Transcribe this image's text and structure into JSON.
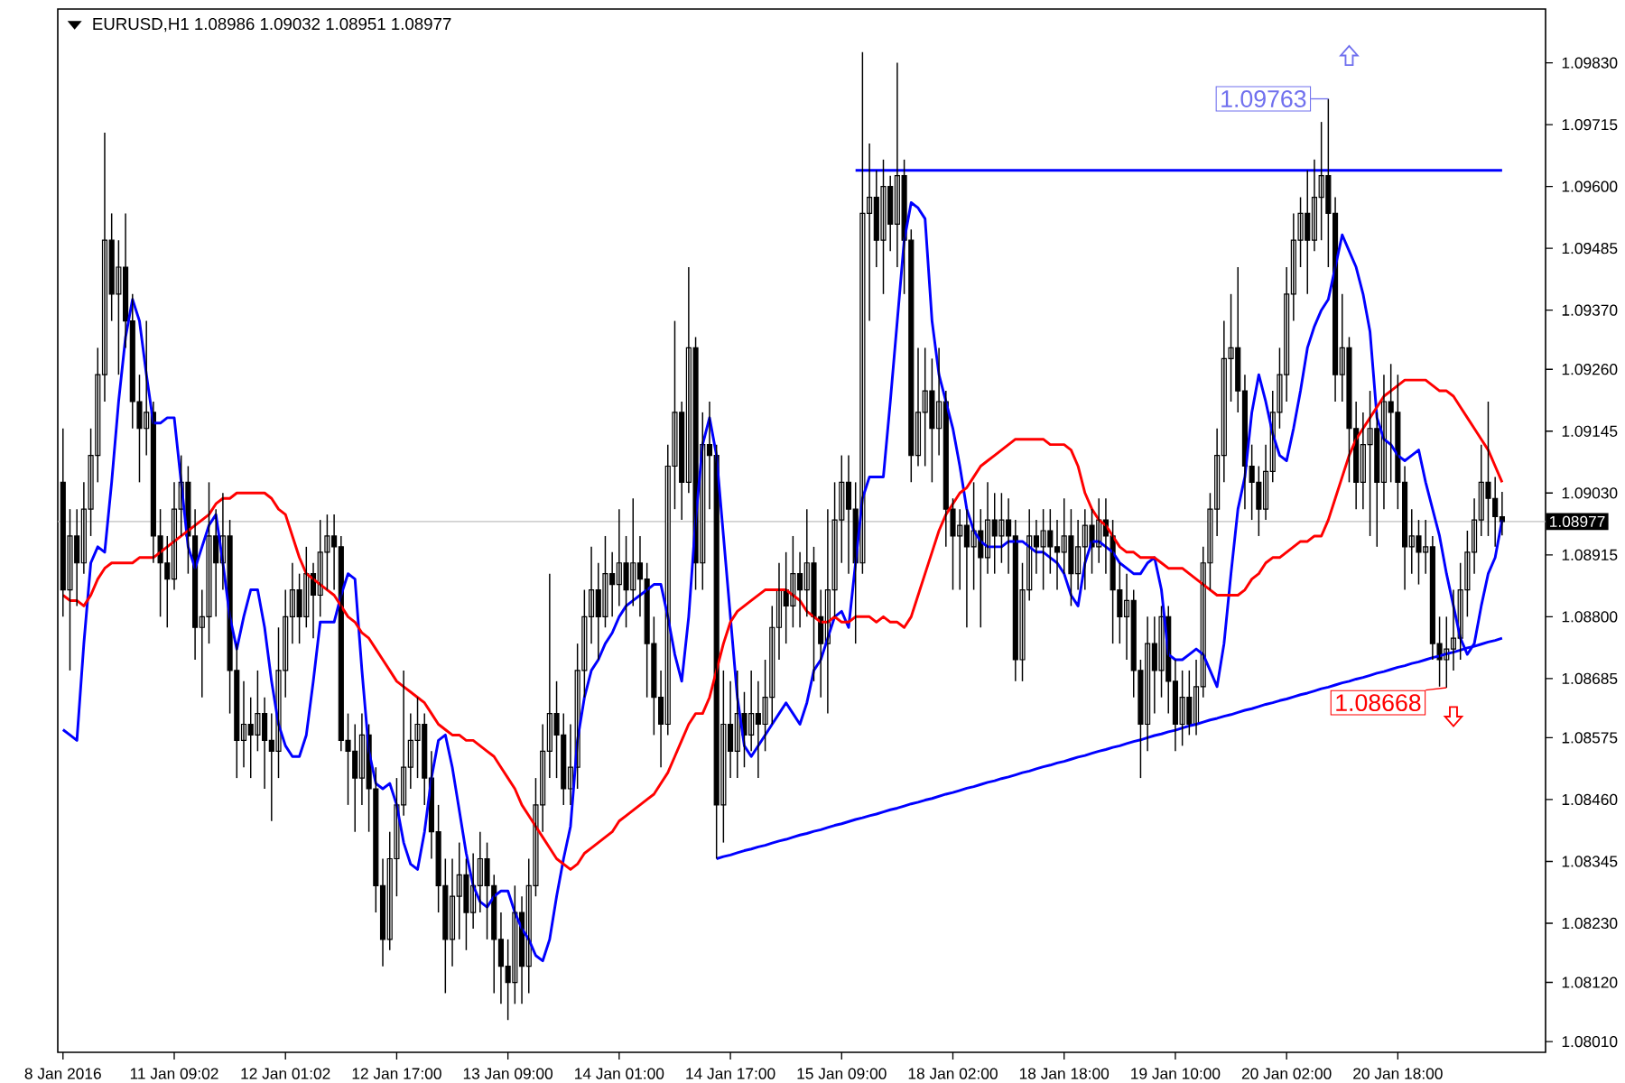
{
  "chart_data": {
    "type": "candlestick",
    "title": "EURUSD,H1 1.08986 1.09032 1.08951 1.08977",
    "categories": [
      "8 Jan 2016",
      null,
      null,
      null,
      null,
      null,
      null,
      null,
      null,
      null,
      null,
      null,
      null,
      null,
      null,
      null,
      "11 Jan 09:02",
      null,
      null,
      null,
      null,
      null,
      null,
      null,
      null,
      null,
      null,
      null,
      null,
      null,
      null,
      null,
      "12 Jan 01:02",
      null,
      null,
      null,
      null,
      null,
      null,
      null,
      null,
      null,
      null,
      null,
      null,
      null,
      null,
      null,
      "12 Jan 17:00",
      null,
      null,
      null,
      null,
      null,
      null,
      null,
      null,
      null,
      null,
      null,
      null,
      null,
      null,
      null,
      "13 Jan 09:00",
      null,
      null,
      null,
      null,
      null,
      null,
      null,
      null,
      null,
      null,
      null,
      null,
      null,
      null,
      null,
      "14 Jan 01:00",
      null,
      null,
      null,
      null,
      null,
      null,
      null,
      null,
      null,
      null,
      null,
      null,
      null,
      null,
      null,
      "14 Jan 17:00",
      null,
      null,
      null,
      null,
      null,
      null,
      null,
      null,
      null,
      null,
      null,
      null,
      null,
      null,
      null,
      "15 Jan 09:00",
      null,
      null,
      null,
      null,
      null,
      null,
      null,
      null,
      null,
      null,
      null,
      null,
      null,
      null,
      null,
      "18 Jan 02:00",
      null,
      null,
      null,
      null,
      null,
      null,
      null,
      null,
      null,
      null,
      null,
      null,
      null,
      null,
      null,
      "18 Jan 18:00",
      null,
      null,
      null,
      null,
      null,
      null,
      null,
      null,
      null,
      null,
      null,
      null,
      null,
      null,
      null,
      "19 Jan 10:00",
      null,
      null,
      null,
      null,
      null,
      null,
      null,
      null,
      null,
      null,
      null,
      null,
      null,
      null,
      null,
      "20 Jan 02:00",
      null,
      null,
      null,
      null,
      null,
      null,
      null,
      null,
      null,
      null,
      null,
      null,
      null,
      null,
      null,
      "20 Jan 18:00",
      null,
      null,
      null,
      null,
      null,
      null,
      null,
      null,
      null,
      null,
      null,
      null,
      null,
      null,
      null
    ],
    "ohlc": [
      [
        1.0905,
        1.0915,
        1.088,
        1.0885
      ],
      [
        1.0885,
        1.09,
        1.087,
        1.0895
      ],
      [
        1.0895,
        1.09,
        1.0882,
        1.089
      ],
      [
        1.089,
        1.0905,
        1.0888,
        1.09
      ],
      [
        1.09,
        1.0915,
        1.0895,
        1.091
      ],
      [
        1.091,
        1.093,
        1.0905,
        1.0925
      ],
      [
        1.0925,
        1.097,
        1.092,
        1.095
      ],
      [
        1.095,
        1.0955,
        1.0935,
        1.094
      ],
      [
        1.094,
        1.095,
        1.0925,
        1.0945
      ],
      [
        1.0945,
        1.0955,
        1.093,
        1.0935
      ],
      [
        1.0935,
        1.094,
        1.0915,
        1.092
      ],
      [
        1.092,
        1.0925,
        1.0905,
        1.0915
      ],
      [
        1.0915,
        1.0935,
        1.091,
        1.0918
      ],
      [
        1.0918,
        1.092,
        1.089,
        1.0895
      ],
      [
        1.0895,
        1.09,
        1.088,
        1.089
      ],
      [
        1.089,
        1.0895,
        1.0878,
        1.0887
      ],
      [
        1.0887,
        1.0905,
        1.0885,
        1.09
      ],
      [
        1.09,
        1.091,
        1.0895,
        1.0905
      ],
      [
        1.0905,
        1.0908,
        1.0888,
        1.0895
      ],
      [
        1.0895,
        1.09,
        1.0872,
        1.0878
      ],
      [
        1.0878,
        1.0885,
        1.0865,
        1.088
      ],
      [
        1.088,
        1.0905,
        1.0875,
        1.0895
      ],
      [
        1.0895,
        1.09,
        1.088,
        1.089
      ],
      [
        1.089,
        1.0903,
        1.0885,
        1.0895
      ],
      [
        1.0895,
        1.0898,
        1.0862,
        1.087
      ],
      [
        1.087,
        1.0875,
        1.085,
        1.0857
      ],
      [
        1.0857,
        1.0868,
        1.0852,
        1.086
      ],
      [
        1.086,
        1.0865,
        1.085,
        1.0858
      ],
      [
        1.0858,
        1.087,
        1.0855,
        1.0862
      ],
      [
        1.0862,
        1.0865,
        1.0848,
        1.0857
      ],
      [
        1.0857,
        1.0862,
        1.0842,
        1.0855
      ],
      [
        1.0855,
        1.0878,
        1.085,
        1.087
      ],
      [
        1.087,
        1.0885,
        1.0865,
        1.088
      ],
      [
        1.088,
        1.089,
        1.0875,
        1.0885
      ],
      [
        1.0885,
        1.0888,
        1.0875,
        1.088
      ],
      [
        1.088,
        1.0893,
        1.0878,
        1.0888
      ],
      [
        1.0888,
        1.089,
        1.0876,
        1.0884
      ],
      [
        1.0884,
        1.0898,
        1.088,
        1.0892
      ],
      [
        1.0892,
        1.0899,
        1.0885,
        1.0895
      ],
      [
        1.0895,
        1.0899,
        1.0885,
        1.0893
      ],
      [
        1.0893,
        1.0895,
        1.0855,
        1.0857
      ],
      [
        1.0857,
        1.0862,
        1.0845,
        1.0855
      ],
      [
        1.0855,
        1.086,
        1.084,
        1.085
      ],
      [
        1.085,
        1.0862,
        1.0845,
        1.0858
      ],
      [
        1.0858,
        1.086,
        1.084,
        1.0848
      ],
      [
        1.0848,
        1.0852,
        1.0825,
        1.083
      ],
      [
        1.083,
        1.0835,
        1.0815,
        1.082
      ],
      [
        1.082,
        1.084,
        1.0818,
        1.0835
      ],
      [
        1.0835,
        1.085,
        1.0828,
        1.0845
      ],
      [
        1.0845,
        1.087,
        1.0843,
        1.0852
      ],
      [
        1.0852,
        1.0862,
        1.0848,
        1.0857
      ],
      [
        1.0857,
        1.0865,
        1.085,
        1.086
      ],
      [
        1.086,
        1.0862,
        1.0845,
        1.085
      ],
      [
        1.085,
        1.0855,
        1.0835,
        1.084
      ],
      [
        1.084,
        1.0845,
        1.0825,
        1.083
      ],
      [
        1.083,
        1.0835,
        1.081,
        1.082
      ],
      [
        1.082,
        1.0835,
        1.0815,
        1.0828
      ],
      [
        1.0828,
        1.0838,
        1.082,
        1.0832
      ],
      [
        1.0832,
        1.0835,
        1.0818,
        1.0825
      ],
      [
        1.0825,
        1.0836,
        1.0822,
        1.083
      ],
      [
        1.083,
        1.084,
        1.0825,
        1.0835
      ],
      [
        1.0835,
        1.0838,
        1.082,
        1.083
      ],
      [
        1.083,
        1.0832,
        1.081,
        1.082
      ],
      [
        1.082,
        1.0825,
        1.0808,
        1.0815
      ],
      [
        1.0815,
        1.082,
        1.0805,
        1.0812
      ],
      [
        1.0812,
        1.083,
        1.0808,
        1.0825
      ],
      [
        1.0825,
        1.0828,
        1.0808,
        1.0815
      ],
      [
        1.0815,
        1.0835,
        1.081,
        1.083
      ],
      [
        1.083,
        1.085,
        1.0828,
        1.0845
      ],
      [
        1.0845,
        1.086,
        1.084,
        1.0855
      ],
      [
        1.0855,
        1.0888,
        1.085,
        1.0862
      ],
      [
        1.0862,
        1.0868,
        1.085,
        1.0858
      ],
      [
        1.0858,
        1.0862,
        1.0845,
        1.0848
      ],
      [
        1.0848,
        1.086,
        1.0845,
        1.0852
      ],
      [
        1.0852,
        1.0875,
        1.0848,
        1.087
      ],
      [
        1.087,
        1.0885,
        1.0865,
        1.088
      ],
      [
        1.088,
        1.0893,
        1.0875,
        1.0885
      ],
      [
        1.0885,
        1.089,
        1.0872,
        1.088
      ],
      [
        1.088,
        1.0895,
        1.0878,
        1.0888
      ],
      [
        1.0888,
        1.0892,
        1.088,
        1.0886
      ],
      [
        1.0886,
        1.09,
        1.0882,
        1.089
      ],
      [
        1.089,
        1.0895,
        1.0878,
        1.0885
      ],
      [
        1.0885,
        1.0902,
        1.0882,
        1.089
      ],
      [
        1.089,
        1.0895,
        1.088,
        1.0887
      ],
      [
        1.0887,
        1.089,
        1.0865,
        1.0875
      ],
      [
        1.0875,
        1.088,
        1.0858,
        1.0865
      ],
      [
        1.0865,
        1.087,
        1.0852,
        1.086
      ],
      [
        1.086,
        1.0912,
        1.0858,
        1.0908
      ],
      [
        1.0908,
        1.0935,
        1.09,
        1.0918
      ],
      [
        1.0918,
        1.092,
        1.0898,
        1.0905
      ],
      [
        1.0905,
        1.0945,
        1.0903,
        1.093
      ],
      [
        1.093,
        1.0932,
        1.0885,
        1.089
      ],
      [
        1.089,
        1.0918,
        1.0885,
        1.0912
      ],
      [
        1.0912,
        1.092,
        1.09,
        1.091
      ],
      [
        1.091,
        1.0912,
        1.0835,
        1.0845
      ],
      [
        1.0845,
        1.087,
        1.0838,
        1.086
      ],
      [
        1.086,
        1.0868,
        1.085,
        1.0855
      ],
      [
        1.0855,
        1.087,
        1.085,
        1.0862
      ],
      [
        1.0862,
        1.0866,
        1.0852,
        1.0858
      ],
      [
        1.0858,
        1.087,
        1.0855,
        1.0862
      ],
      [
        1.0862,
        1.0868,
        1.085,
        1.086
      ],
      [
        1.086,
        1.0872,
        1.0855,
        1.0865
      ],
      [
        1.0865,
        1.0882,
        1.086,
        1.0878
      ],
      [
        1.0878,
        1.089,
        1.0872,
        1.0885
      ],
      [
        1.0885,
        1.0892,
        1.0875,
        1.0882
      ],
      [
        1.0882,
        1.0895,
        1.0878,
        1.0888
      ],
      [
        1.0888,
        1.0892,
        1.0878,
        1.0885
      ],
      [
        1.0885,
        1.09,
        1.088,
        1.089
      ],
      [
        1.089,
        1.0893,
        1.0868,
        1.088
      ],
      [
        1.088,
        1.0885,
        1.0865,
        1.0875
      ],
      [
        1.0875,
        1.09,
        1.0862,
        1.0885
      ],
      [
        1.0885,
        1.0905,
        1.088,
        1.0898
      ],
      [
        1.0898,
        1.091,
        1.089,
        1.0905
      ],
      [
        1.0905,
        1.091,
        1.0888,
        1.09
      ],
      [
        1.09,
        1.0905,
        1.0875,
        1.089
      ],
      [
        1.089,
        1.0985,
        1.0888,
        1.0955
      ],
      [
        1.0955,
        1.0968,
        1.0935,
        1.0958
      ],
      [
        1.0958,
        1.0963,
        1.0945,
        1.095
      ],
      [
        1.095,
        1.0965,
        1.094,
        1.096
      ],
      [
        1.096,
        1.0962,
        1.0948,
        1.0953
      ],
      [
        1.0953,
        1.0983,
        1.0945,
        1.0962
      ],
      [
        1.0962,
        1.0965,
        1.094,
        1.095
      ],
      [
        1.095,
        1.0952,
        1.0905,
        1.091
      ],
      [
        1.091,
        1.093,
        1.0908,
        1.0918
      ],
      [
        1.0918,
        1.093,
        1.0908,
        1.0922
      ],
      [
        1.0922,
        1.0928,
        1.0905,
        1.0915
      ],
      [
        1.0915,
        1.093,
        1.091,
        1.092
      ],
      [
        1.092,
        1.0922,
        1.0893,
        1.09
      ],
      [
        1.09,
        1.0902,
        1.0885,
        1.0895
      ],
      [
        1.0895,
        1.09,
        1.0885,
        1.0897
      ],
      [
        1.0897,
        1.09,
        1.0878,
        1.0893
      ],
      [
        1.0893,
        1.0905,
        1.0885,
        1.0896
      ],
      [
        1.0896,
        1.09,
        1.0878,
        1.0891
      ],
      [
        1.0891,
        1.0905,
        1.0888,
        1.0898
      ],
      [
        1.0898,
        1.0903,
        1.0888,
        1.0895
      ],
      [
        1.0895,
        1.0903,
        1.089,
        1.0898
      ],
      [
        1.0898,
        1.0902,
        1.0888,
        1.0895
      ],
      [
        1.0895,
        1.0898,
        1.0868,
        1.0872
      ],
      [
        1.0872,
        1.089,
        1.0868,
        1.0885
      ],
      [
        1.0885,
        1.09,
        1.0883,
        1.0895
      ],
      [
        1.0895,
        1.0898,
        1.0888,
        1.0893
      ],
      [
        1.0893,
        1.09,
        1.0885,
        1.0896
      ],
      [
        1.0896,
        1.09,
        1.0888,
        1.0893
      ],
      [
        1.0893,
        1.0898,
        1.0885,
        1.0892
      ],
      [
        1.0892,
        1.0902,
        1.0888,
        1.0895
      ],
      [
        1.0895,
        1.09,
        1.0882,
        1.0888
      ],
      [
        1.0888,
        1.0898,
        1.0885,
        1.0893
      ],
      [
        1.0893,
        1.09,
        1.0885,
        1.0897
      ],
      [
        1.0897,
        1.09,
        1.0888,
        1.0893
      ],
      [
        1.0893,
        1.0902,
        1.089,
        1.0898
      ],
      [
        1.0898,
        1.0902,
        1.0888,
        1.0895
      ],
      [
        1.0895,
        1.0898,
        1.0875,
        1.0885
      ],
      [
        1.0885,
        1.089,
        1.0875,
        1.088
      ],
      [
        1.088,
        1.0888,
        1.0872,
        1.0883
      ],
      [
        1.0883,
        1.0885,
        1.0865,
        1.087
      ],
      [
        1.087,
        1.0872,
        1.085,
        1.086
      ],
      [
        1.086,
        1.088,
        1.0855,
        1.0875
      ],
      [
        1.0875,
        1.088,
        1.0862,
        1.087
      ],
      [
        1.087,
        1.0882,
        1.0865,
        1.088
      ],
      [
        1.088,
        1.0882,
        1.0862,
        1.0868
      ],
      [
        1.0868,
        1.0872,
        1.0855,
        1.086
      ],
      [
        1.086,
        1.087,
        1.0856,
        1.0865
      ],
      [
        1.0865,
        1.087,
        1.0858,
        1.086
      ],
      [
        1.086,
        1.0872,
        1.0858,
        1.0867
      ],
      [
        1.0867,
        1.0893,
        1.0865,
        1.089
      ],
      [
        1.089,
        1.0903,
        1.0885,
        1.09
      ],
      [
        1.09,
        1.0915,
        1.0895,
        1.091
      ],
      [
        1.091,
        1.0935,
        1.0905,
        1.0928
      ],
      [
        1.0928,
        1.094,
        1.092,
        1.093
      ],
      [
        1.093,
        1.0945,
        1.0918,
        1.0922
      ],
      [
        1.0922,
        1.0925,
        1.09,
        1.0908
      ],
      [
        1.0908,
        1.0912,
        1.0898,
        1.0905
      ],
      [
        1.0905,
        1.0908,
        1.0895,
        1.09
      ],
      [
        1.09,
        1.0912,
        1.0898,
        1.0907
      ],
      [
        1.0907,
        1.0922,
        1.0905,
        1.0918
      ],
      [
        1.0918,
        1.093,
        1.0915,
        1.0925
      ],
      [
        1.0925,
        1.0945,
        1.092,
        1.094
      ],
      [
        1.094,
        1.0955,
        1.0935,
        1.095
      ],
      [
        1.095,
        1.0958,
        1.0945,
        1.0955
      ],
      [
        1.0955,
        1.0963,
        1.094,
        1.095
      ],
      [
        1.095,
        1.0965,
        1.0948,
        1.0958
      ],
      [
        1.0958,
        1.0972,
        1.095,
        1.0962
      ],
      [
        1.0962,
        1.09763,
        1.0945,
        1.0955
      ],
      [
        1.0955,
        1.0958,
        1.092,
        1.0925
      ],
      [
        1.0925,
        1.094,
        1.092,
        1.093
      ],
      [
        1.093,
        1.0932,
        1.0905,
        1.0915
      ],
      [
        1.0915,
        1.092,
        1.09,
        1.0905
      ],
      [
        1.0905,
        1.0918,
        1.09,
        1.0912
      ],
      [
        1.0912,
        1.0922,
        1.0895,
        1.0915
      ],
      [
        1.0915,
        1.0918,
        1.0893,
        1.0905
      ],
      [
        1.0905,
        1.0925,
        1.09,
        1.092
      ],
      [
        1.092,
        1.0927,
        1.0905,
        1.0918
      ],
      [
        1.0918,
        1.0925,
        1.09,
        1.0905
      ],
      [
        1.0905,
        1.0908,
        1.0885,
        1.0893
      ],
      [
        1.0893,
        1.09,
        1.0888,
        1.0895
      ],
      [
        1.0895,
        1.0898,
        1.0886,
        1.0892
      ],
      [
        1.0892,
        1.0898,
        1.0888,
        1.0893
      ],
      [
        1.0893,
        1.0895,
        1.0872,
        1.0875
      ],
      [
        1.0875,
        1.088,
        1.0867,
        1.0872
      ],
      [
        1.0872,
        1.088,
        1.08668,
        1.0874
      ],
      [
        1.0874,
        1.0885,
        1.087,
        1.0876
      ],
      [
        1.0876,
        1.089,
        1.0872,
        1.0885
      ],
      [
        1.0885,
        1.0896,
        1.088,
        1.0892
      ],
      [
        1.0892,
        1.0902,
        1.0888,
        1.0898
      ],
      [
        1.0898,
        1.0912,
        1.0895,
        1.0905
      ],
      [
        1.0905,
        1.092,
        1.0895,
        1.0902
      ],
      [
        1.0902,
        1.0906,
        1.0893,
        1.08986
      ],
      [
        1.08986,
        1.09032,
        1.08951,
        1.08977
      ]
    ],
    "series": [
      {
        "type": "line",
        "color": "#0000ff",
        "values": [
          1.0859,
          1.0858,
          1.0857,
          1.0875,
          1.089,
          1.0893,
          1.0892,
          1.0905,
          1.092,
          1.0932,
          1.0939,
          1.0935,
          1.0925,
          1.0916,
          1.0916,
          1.0917,
          1.0917,
          1.0905,
          1.0893,
          1.0889,
          1.0893,
          1.0897,
          1.0899,
          1.089,
          1.088,
          1.0874,
          1.088,
          1.0885,
          1.0885,
          1.0878,
          1.0868,
          1.086,
          1.0856,
          1.0854,
          1.0854,
          1.0858,
          1.0868,
          1.0879,
          1.0879,
          1.0879,
          1.0884,
          1.0888,
          1.0887,
          1.087,
          1.0855,
          1.0849,
          1.0848,
          1.0849,
          1.0845,
          1.0838,
          1.0834,
          1.0833,
          1.084,
          1.085,
          1.0857,
          1.0858,
          1.0852,
          1.0844,
          1.0836,
          1.083,
          1.0827,
          1.0826,
          1.0828,
          1.0829,
          1.0829,
          1.0825,
          1.0822,
          1.082,
          1.0817,
          1.0816,
          1.082,
          1.0828,
          1.0835,
          1.0841,
          1.0857,
          1.0865,
          1.087,
          1.0872,
          1.0875,
          1.0877,
          1.088,
          1.0882,
          1.0883,
          1.0884,
          1.0885,
          1.0886,
          1.0886,
          1.088,
          1.0873,
          1.0868,
          1.088,
          1.0898,
          1.0912,
          1.0917,
          1.091,
          1.0895,
          1.088,
          1.0865,
          1.0856,
          1.0854,
          1.0856,
          1.0858,
          1.086,
          1.0862,
          1.0864,
          1.0862,
          1.086,
          1.0864,
          1.087,
          1.0872,
          1.0876,
          1.088,
          1.0881,
          1.0878,
          1.089,
          1.0902,
          1.0906,
          1.0906,
          1.0906,
          1.092,
          1.0935,
          1.095,
          1.0957,
          1.0956,
          1.0954,
          1.0935,
          1.0925,
          1.092,
          1.0915,
          1.0908,
          1.09,
          1.0896,
          1.0894,
          1.0893,
          1.0893,
          1.0893,
          1.0894,
          1.0894,
          1.0894,
          1.0893,
          1.0892,
          1.0892,
          1.0891,
          1.089,
          1.0888,
          1.0884,
          1.0882,
          1.089,
          1.0894,
          1.0894,
          1.0893,
          1.0892,
          1.089,
          1.0889,
          1.0888,
          1.0888,
          1.089,
          1.0891,
          1.0885,
          1.0873,
          1.0872,
          1.0872,
          1.0873,
          1.0874,
          1.0873,
          1.087,
          1.0867,
          1.0875,
          1.0888,
          1.09,
          1.0906,
          1.0918,
          1.0925,
          1.092,
          1.0914,
          1.091,
          1.0909,
          1.0915,
          1.0922,
          1.093,
          1.0934,
          1.0937,
          1.0939,
          1.0945,
          1.0951,
          1.0948,
          1.0945,
          1.094,
          1.0933,
          1.0917,
          1.0913,
          1.0912,
          1.091,
          1.0909,
          1.091,
          1.0911,
          1.0905,
          1.09,
          1.0895,
          1.0888,
          1.0882,
          1.0876,
          1.0873,
          1.0875,
          1.0882,
          1.0888,
          1.0891,
          1.0898
        ]
      },
      {
        "type": "line",
        "color": "#ff0000",
        "values": [
          1.0884,
          1.0883,
          1.0883,
          1.0882,
          1.0884,
          1.0887,
          1.0889,
          1.089,
          1.089,
          1.089,
          1.089,
          1.0891,
          1.0891,
          1.0891,
          1.0892,
          1.0893,
          1.0894,
          1.0895,
          1.0896,
          1.0897,
          1.0898,
          1.0899,
          1.0901,
          1.0902,
          1.0902,
          1.0903,
          1.0903,
          1.0903,
          1.0903,
          1.0903,
          1.0902,
          1.09,
          1.0899,
          1.0895,
          1.0891,
          1.0888,
          1.0887,
          1.0886,
          1.0885,
          1.0884,
          1.0882,
          1.088,
          1.0879,
          1.0877,
          1.0876,
          1.0874,
          1.0872,
          1.087,
          1.0868,
          1.0867,
          1.0866,
          1.0865,
          1.0864,
          1.0862,
          1.086,
          1.0859,
          1.0858,
          1.0858,
          1.0857,
          1.0857,
          1.0856,
          1.0855,
          1.0854,
          1.0852,
          1.085,
          1.0848,
          1.0845,
          1.0843,
          1.0841,
          1.0839,
          1.0837,
          1.0835,
          1.0834,
          1.0833,
          1.0834,
          1.0836,
          1.0837,
          1.0838,
          1.0839,
          1.084,
          1.0842,
          1.0843,
          1.0844,
          1.0845,
          1.0846,
          1.0847,
          1.0849,
          1.0851,
          1.0854,
          1.0857,
          1.086,
          1.0862,
          1.0862,
          1.0865,
          1.087,
          1.0875,
          1.0879,
          1.0881,
          1.0882,
          1.0883,
          1.0884,
          1.0885,
          1.0885,
          1.0885,
          1.0885,
          1.0884,
          1.0883,
          1.0881,
          1.088,
          1.0879,
          1.0879,
          1.088,
          1.0879,
          1.0879,
          1.088,
          1.088,
          1.088,
          1.0879,
          1.088,
          1.0879,
          1.0879,
          1.0878,
          1.088,
          1.0884,
          1.0888,
          1.0892,
          1.0896,
          1.0899,
          1.0901,
          1.0903,
          1.0904,
          1.0906,
          1.0908,
          1.0909,
          1.091,
          1.0911,
          1.0912,
          1.0913,
          1.0913,
          1.0913,
          1.0913,
          1.0913,
          1.0912,
          1.0912,
          1.0912,
          1.0911,
          1.0908,
          1.0903,
          1.09,
          1.0898,
          1.0897,
          1.0895,
          1.0893,
          1.0892,
          1.0892,
          1.0891,
          1.0891,
          1.0891,
          1.089,
          1.0889,
          1.0889,
          1.0889,
          1.0888,
          1.0887,
          1.0886,
          1.0885,
          1.0884,
          1.0884,
          1.0884,
          1.0884,
          1.0885,
          1.0887,
          1.0888,
          1.089,
          1.0891,
          1.0891,
          1.0892,
          1.0893,
          1.0894,
          1.0894,
          1.0895,
          1.0895,
          1.0898,
          1.0902,
          1.0906,
          1.091,
          1.0913,
          1.0915,
          1.0917,
          1.0919,
          1.0921,
          1.0922,
          1.0923,
          1.0924,
          1.0924,
          1.0924,
          1.0924,
          1.0923,
          1.0922,
          1.0922,
          1.0921,
          1.0919,
          1.0917,
          1.0915,
          1.0913,
          1.0911,
          1.0908,
          1.0905
        ]
      },
      {
        "type": "line",
        "color": "#0000ff",
        "values": [
          null,
          null,
          null,
          null,
          null,
          null,
          null,
          null,
          null,
          null,
          null,
          null,
          null,
          null,
          null,
          null,
          null,
          null,
          null,
          null,
          null,
          null,
          null,
          null,
          null,
          null,
          null,
          null,
          null,
          null,
          null,
          null,
          null,
          null,
          null,
          null,
          null,
          null,
          null,
          null,
          null,
          null,
          null,
          null,
          null,
          null,
          null,
          null,
          null,
          null,
          null,
          null,
          null,
          null,
          null,
          null,
          null,
          null,
          null,
          null,
          null,
          null,
          null,
          null,
          null,
          null,
          null,
          null,
          null,
          null,
          null,
          null,
          null,
          null,
          null,
          null,
          null,
          null,
          null,
          null,
          null,
          null,
          null,
          null,
          null,
          null,
          null,
          null,
          null,
          null,
          null,
          null,
          null,
          null,
          null,
          null,
          null,
          null,
          null,
          null,
          null,
          null,
          null,
          null,
          null,
          null,
          null,
          null,
          null,
          null,
          null,
          null,
          null,
          null,
          1.0963,
          1.0963,
          1.0963,
          1.0963,
          1.0963,
          1.0963,
          1.0963,
          1.0963,
          1.0963,
          1.0963,
          1.0963,
          1.0963,
          1.0963,
          1.0963,
          1.0963,
          1.0963,
          1.0963,
          1.0963,
          1.0963,
          1.0963,
          1.0963,
          1.0963,
          1.0963,
          1.0963,
          1.0963,
          1.0963,
          1.0963,
          1.0963,
          1.0963,
          1.0963,
          1.0963,
          1.0963,
          1.0963,
          1.0963,
          1.0963,
          1.0963,
          1.0963,
          1.0963,
          1.0963,
          1.0963,
          1.0963,
          1.0963,
          1.0963,
          1.0963,
          1.0963,
          1.0963,
          1.0963,
          1.0963,
          1.0963,
          1.0963,
          1.0963,
          1.0963,
          1.0963,
          1.0963,
          1.0963,
          1.0963,
          1.0963,
          1.0963,
          1.0963,
          1.0963,
          1.0963,
          1.0963,
          1.0963,
          1.0963,
          1.0963,
          1.0963,
          1.0963,
          1.0963,
          1.0963,
          1.0963,
          1.0963,
          1.0963,
          1.0963,
          1.0963,
          1.0963,
          1.0963,
          1.0963,
          1.0963,
          1.0963,
          1.0963,
          1.0963,
          1.0963,
          1.0963,
          1.0963,
          1.0963,
          1.0963,
          1.0963,
          1.0963,
          1.0963,
          1.0963,
          1.0963,
          1.0963,
          1.0963,
          1.0963
        ]
      },
      {
        "type": "line",
        "color": "#0000ff",
        "values": [
          null,
          null,
          null,
          null,
          null,
          null,
          null,
          null,
          null,
          null,
          null,
          null,
          null,
          null,
          null,
          null,
          null,
          null,
          null,
          null,
          null,
          null,
          null,
          null,
          null,
          null,
          null,
          null,
          null,
          null,
          null,
          null,
          null,
          null,
          null,
          null,
          null,
          null,
          null,
          null,
          null,
          null,
          null,
          null,
          null,
          null,
          null,
          null,
          null,
          null,
          null,
          null,
          null,
          null,
          null,
          null,
          null,
          null,
          null,
          null,
          null,
          null,
          null,
          null,
          null,
          null,
          null,
          null,
          null,
          null,
          null,
          null,
          null,
          null,
          null,
          null,
          null,
          null,
          null,
          null,
          null,
          null,
          null,
          null,
          null,
          null,
          null,
          null,
          null,
          null,
          null,
          null,
          null,
          null,
          1.0835,
          1.08354,
          1.08357,
          1.08361,
          1.08365,
          1.08368,
          1.08372,
          1.08375,
          1.08379,
          1.08383,
          1.08386,
          1.0839,
          1.08394,
          1.08397,
          1.08401,
          1.08404,
          1.08408,
          1.08412,
          1.08415,
          1.08419,
          1.08423,
          1.08426,
          1.0843,
          1.08433,
          1.08437,
          1.08441,
          1.08444,
          1.08448,
          1.08452,
          1.08455,
          1.08459,
          1.08462,
          1.08466,
          1.0847,
          1.08473,
          1.08477,
          1.08481,
          1.08484,
          1.08488,
          1.08492,
          1.08495,
          1.08499,
          1.08502,
          1.08506,
          1.0851,
          1.08513,
          1.08517,
          1.08521,
          1.08524,
          1.08528,
          1.08531,
          1.08535,
          1.08539,
          1.08542,
          1.08546,
          1.0855,
          1.08553,
          1.08557,
          1.0856,
          1.08564,
          1.08568,
          1.08571,
          1.08575,
          1.08579,
          1.08582,
          1.08586,
          1.08589,
          1.08593,
          1.08597,
          1.086,
          1.08604,
          1.08608,
          1.08611,
          1.08615,
          1.08618,
          1.08622,
          1.08626,
          1.08629,
          1.08633,
          1.08637,
          1.0864,
          1.08644,
          1.08647,
          1.08651,
          1.08655,
          1.08658,
          1.08662,
          1.08666,
          1.08669,
          1.08673,
          1.08677,
          1.0868,
          1.08684,
          1.08687,
          1.08691,
          1.08695,
          1.08698,
          1.08702,
          1.08706,
          1.08709,
          1.08713,
          1.08716,
          1.0872,
          1.08724,
          1.08727,
          1.08731,
          1.08734,
          1.08738,
          1.08742,
          1.08745,
          1.08749,
          1.08753,
          1.08756,
          1.0876
        ]
      }
    ],
    "ylim": [
      1.0799,
      1.0993
    ],
    "yticks": [
      {
        "value": 1.0801,
        "label": "1.08010"
      },
      {
        "value": 1.0812,
        "label": "1.08120"
      },
      {
        "value": 1.0823,
        "label": "1.08230"
      },
      {
        "value": 1.08345,
        "label": "1.08345"
      },
      {
        "value": 1.0846,
        "label": "1.08460"
      },
      {
        "value": 1.08575,
        "label": "1.08575"
      },
      {
        "value": 1.08685,
        "label": "1.08685"
      },
      {
        "value": 1.088,
        "label": "1.08800"
      },
      {
        "value": 1.08915,
        "label": "1.08915"
      },
      {
        "value": 1.0903,
        "label": "1.09030"
      },
      {
        "value": 1.09145,
        "label": "1.09145"
      },
      {
        "value": 1.0926,
        "label": "1.09260"
      },
      {
        "value": 1.0937,
        "label": "1.09370"
      },
      {
        "value": 1.09485,
        "label": "1.09485"
      },
      {
        "value": 1.096,
        "label": "1.09600"
      },
      {
        "value": 1.09715,
        "label": "1.09715"
      },
      {
        "value": 1.0983,
        "label": "1.09830"
      }
    ],
    "ref_lines": [
      {
        "axis": "y",
        "value": 1.08977,
        "label": "1.08977",
        "color": "#c0c0c0"
      }
    ],
    "annotations": [
      "1.09763",
      "1.08668"
    ]
  }
}
